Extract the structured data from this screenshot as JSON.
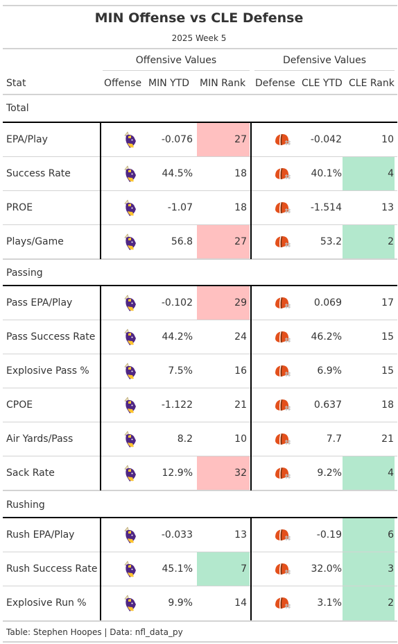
{
  "title": "MIN Offense vs CLE Defense",
  "subtitle": "2025 Week 5",
  "spanners": {
    "offense": "Offensive Values",
    "defense": "Defensive Values"
  },
  "columns": {
    "stat": "Stat",
    "offense": "Offense",
    "off_ytd": "MIN YTD",
    "off_rank": "MIN Rank",
    "defense": "Defense",
    "def_ytd": "CLE YTD",
    "def_rank": "CLE Rank"
  },
  "colors": {
    "bad": "#ffc0c0",
    "good": "#b3e8cd"
  },
  "icons": {
    "offense": "vikings-logo-icon",
    "defense": "browns-helmet-icon"
  },
  "groups": [
    {
      "label": "Total",
      "rows": [
        {
          "stat": "EPA/Play",
          "off_ytd": "-0.076",
          "off_rank": "27",
          "off_rank_status": "bad",
          "def_ytd": "-0.042",
          "def_rank": "10",
          "def_rank_status": "none"
        },
        {
          "stat": "Success Rate",
          "off_ytd": "44.5%",
          "off_rank": "18",
          "off_rank_status": "none",
          "def_ytd": "40.1%",
          "def_rank": "4",
          "def_rank_status": "good"
        },
        {
          "stat": "PROE",
          "off_ytd": "-1.07",
          "off_rank": "18",
          "off_rank_status": "none",
          "def_ytd": "-1.514",
          "def_rank": "13",
          "def_rank_status": "none"
        },
        {
          "stat": "Plays/Game",
          "off_ytd": "56.8",
          "off_rank": "27",
          "off_rank_status": "bad",
          "def_ytd": "53.2",
          "def_rank": "2",
          "def_rank_status": "good"
        }
      ]
    },
    {
      "label": "Passing",
      "rows": [
        {
          "stat": "Pass EPA/Play",
          "off_ytd": "-0.102",
          "off_rank": "29",
          "off_rank_status": "bad",
          "def_ytd": "0.069",
          "def_rank": "17",
          "def_rank_status": "none"
        },
        {
          "stat": "Pass Success Rate",
          "off_ytd": "44.2%",
          "off_rank": "24",
          "off_rank_status": "none",
          "def_ytd": "46.2%",
          "def_rank": "15",
          "def_rank_status": "none"
        },
        {
          "stat": "Explosive Pass %",
          "off_ytd": "7.5%",
          "off_rank": "16",
          "off_rank_status": "none",
          "def_ytd": "6.9%",
          "def_rank": "15",
          "def_rank_status": "none"
        },
        {
          "stat": "CPOE",
          "off_ytd": "-1.122",
          "off_rank": "21",
          "off_rank_status": "none",
          "def_ytd": "0.637",
          "def_rank": "18",
          "def_rank_status": "none"
        },
        {
          "stat": "Air Yards/Pass",
          "off_ytd": "8.2",
          "off_rank": "10",
          "off_rank_status": "none",
          "def_ytd": "7.7",
          "def_rank": "21",
          "def_rank_status": "none"
        },
        {
          "stat": "Sack Rate",
          "off_ytd": "12.9%",
          "off_rank": "32",
          "off_rank_status": "bad",
          "def_ytd": "9.2%",
          "def_rank": "4",
          "def_rank_status": "good"
        }
      ]
    },
    {
      "label": "Rushing",
      "rows": [
        {
          "stat": "Rush EPA/Play",
          "off_ytd": "-0.033",
          "off_rank": "13",
          "off_rank_status": "none",
          "def_ytd": "-0.19",
          "def_rank": "6",
          "def_rank_status": "good"
        },
        {
          "stat": "Rush Success Rate",
          "off_ytd": "45.1%",
          "off_rank": "7",
          "off_rank_status": "good",
          "def_ytd": "32.0%",
          "def_rank": "3",
          "def_rank_status": "good"
        },
        {
          "stat": "Explosive Run %",
          "off_ytd": "9.9%",
          "off_rank": "14",
          "off_rank_status": "none",
          "def_ytd": "3.1%",
          "def_rank": "2",
          "def_rank_status": "good"
        }
      ]
    }
  ],
  "footer": "Table: Stephen Hoopes | Data: nfl_data_py"
}
